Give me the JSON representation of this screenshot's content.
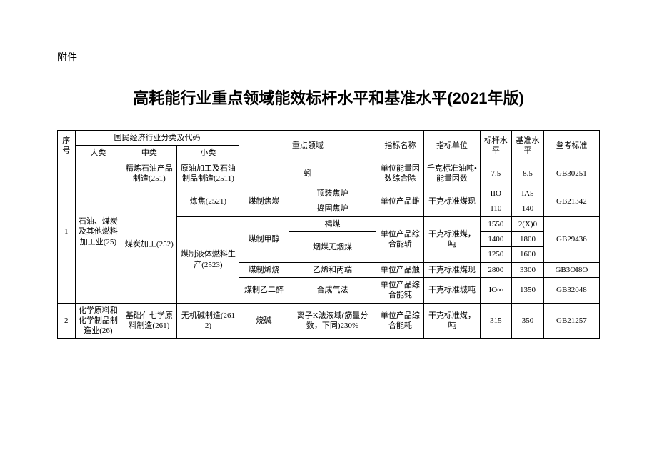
{
  "attachment": "附件",
  "title": "高耗能行业重点领域能效标杆水平和基准水平(2021年版)",
  "header": {
    "seq": "序号",
    "industry_group": "国民经济行业分类及代码",
    "cat1": "大类",
    "cat2": "中类",
    "cat3": "小类",
    "domain": "重点领域",
    "metric": "指标名称",
    "unit": "指标单位",
    "benchmark": "标杆水平",
    "baseline": "基准水平",
    "reference": "叁考标准"
  },
  "rows": {
    "r1": {
      "seq": "1",
      "cat1": "石油、煤炭及其他燃料加工业(25)",
      "cat2a": "精炼石油产品制造(251)",
      "cat3a": "原油加工及石油制品制造(2511)",
      "domain_a": "蚓",
      "metric_a": "单位能量因数综合除",
      "unit_a": "千克标准油吨•能量因数",
      "bench_a": "7.5",
      "base_a": "8.5",
      "std_a": "GB30251",
      "cat2b": "煤炭加工(252)",
      "cat3b1": "炼焦(2521)",
      "domain_b1": "煤制焦炭",
      "sub_b1a": "顶装焦炉",
      "sub_b1b": "捣固焦炉",
      "metric_b1": "单位产品雌",
      "unit_b1": "干克标准煤现",
      "bench_b1a": "IIO",
      "base_b1a": "IA5",
      "bench_b1b": "110",
      "base_b1b": "140",
      "std_b1": "GB21342",
      "cat3b2": "煤制液体燃料生产(2523)",
      "domain_b2": "煤制甲醇",
      "sub_b2a": "褐煤",
      "sub_b2b": "烟煤无烟煤",
      "metric_b2": "单位产品综合能轿",
      "unit_b2": "干克标准煤，吨",
      "bench_b2a": "1550",
      "base_b2a": "2(X)0",
      "bench_b2b": "1400",
      "base_b2b": "1800",
      "bench_b2c": "1250",
      "base_b2c": "1600",
      "std_b2": "GB29436",
      "domain_b3": "煤制烯烧",
      "sub_b3": "乙烯和丙端",
      "metric_b3": "单位产品触",
      "unit_b3": "干克标准煤现",
      "bench_b3": "2800",
      "base_b3": "3300",
      "std_b3": "GB3OI8O",
      "domain_b4": "煤制乙二醉",
      "sub_b4": "合成气法",
      "metric_b4": "单位产品综合能钝",
      "unit_b4": "干克标准城吨",
      "bench_b4": "IO∞",
      "base_b4": "1350",
      "std_b4": "GB32048"
    },
    "r2": {
      "seq": "2",
      "cat1": "化学原料和化学制品制造业(26)",
      "cat2": "基础亻七学原料制造(261)",
      "cat3": "无机碱制造(2612)",
      "domain": "烧碱",
      "sub": "离子K法液域(筋量分数，下同)230%",
      "metric": "单位产品综合能耗",
      "unit": "干克标准煤，吨",
      "bench": "315",
      "base": "350",
      "std": "GB21257"
    }
  }
}
